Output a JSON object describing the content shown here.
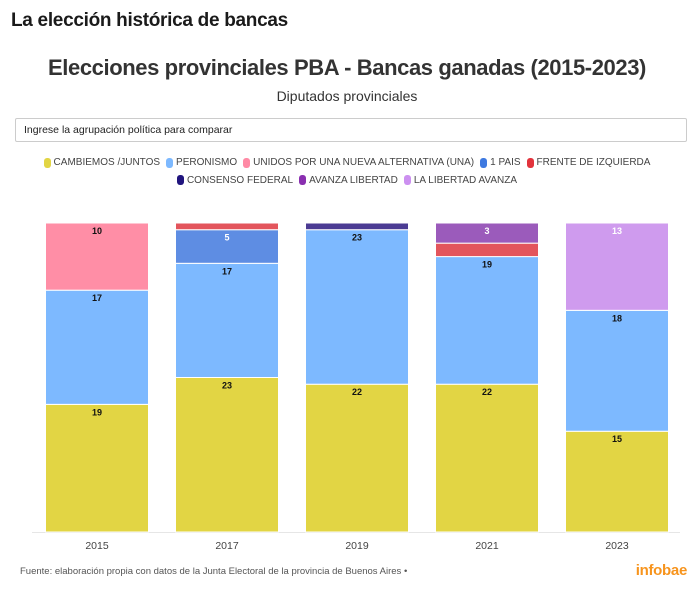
{
  "header": {
    "title": "La elección histórica de bancas"
  },
  "search": {
    "placeholder": "Ingrese la agrupación política para comparar",
    "value": ""
  },
  "footer": {
    "source": "Fuente: elaboración propia con datos de la Junta Electoral de la provincia de Buenos Aires •",
    "logo": "infobae",
    "logo_color": "#f7941d"
  },
  "legend": {
    "rows": [
      [
        {
          "label": "CAMBIEMOS /JUNTOS",
          "color": "#e2d544"
        },
        {
          "label": "PERONISMO",
          "color": "#7db9ff"
        },
        {
          "label": "UNIDOS POR UNA NUEVA ALTERNATIVA (UNA)",
          "color": "#ff8aa5"
        },
        {
          "label": "1 PAIS",
          "color": "#3e79e0"
        },
        {
          "label": "FRENTE DE IZQUIERDA",
          "color": "#e2333c"
        }
      ],
      [
        {
          "label": "CONSENSO FEDERAL",
          "color": "#21157e"
        },
        {
          "label": "AVANZA LIBERTAD",
          "color": "#8a2fb0"
        },
        {
          "label": "LA LIBERTAD AVANZA",
          "color": "#cc90f0"
        }
      ]
    ]
  },
  "chart_data": {
    "type": "bar",
    "stacked": true,
    "title": "Elecciones provinciales PBA - Bancas ganadas (2015-2023)",
    "subtitle": "Diputados provinciales",
    "xlabel": "",
    "ylabel": "",
    "categories": [
      "2015",
      "2017",
      "2019",
      "2021",
      "2023"
    ],
    "ylim": [
      0,
      46
    ],
    "grid": false,
    "legend_position": "top-center",
    "series": [
      {
        "name": "CAMBIEMOS /JUNTOS",
        "color": "#e2d544",
        "label_color": "#111111",
        "values": [
          19,
          23,
          22,
          22,
          15
        ]
      },
      {
        "name": "PERONISMO",
        "color": "#7db9ff",
        "label_color": "#111111",
        "values": [
          17,
          17,
          23,
          19,
          18
        ]
      },
      {
        "name": "UNIDOS POR UNA NUEVA ALTERNATIVA (UNA)",
        "color": "#ff8ea6",
        "label_color": "#111111",
        "values": [
          10,
          0,
          0,
          0,
          0
        ]
      },
      {
        "name": "1 PAIS",
        "color": "#5e8de3",
        "label_color": "#ffffff",
        "values": [
          0,
          5,
          0,
          0,
          0
        ]
      },
      {
        "name": "FRENTE DE IZQUIERDA",
        "color": "#e3555c",
        "label_color": "#ffffff",
        "values": [
          0,
          1,
          0,
          2,
          0
        ]
      },
      {
        "name": "CONSENSO FEDERAL",
        "color": "#4b3b93",
        "label_color": "#ffffff",
        "values": [
          0,
          0,
          1,
          0,
          0
        ]
      },
      {
        "name": "AVANZA LIBERTAD",
        "color": "#9b5bbb",
        "label_color": "#ffffff",
        "values": [
          0,
          0,
          0,
          3,
          0
        ]
      },
      {
        "name": "LA LIBERTAD AVANZA",
        "color": "#cf9bee",
        "label_color": "#ffffff",
        "values": [
          0,
          0,
          0,
          0,
          13
        ]
      }
    ],
    "data_labels_min_value": 3
  }
}
